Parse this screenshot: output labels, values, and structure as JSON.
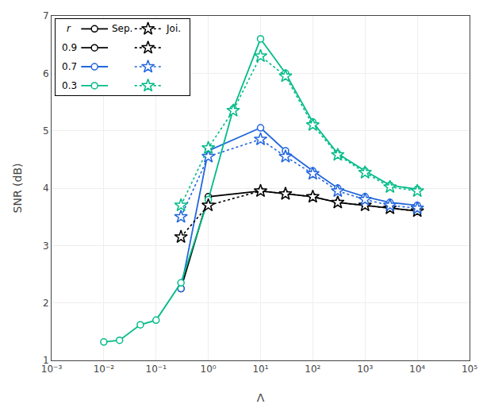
{
  "chart_data": {
    "type": "line",
    "xlabel": "Λ",
    "ylabel": "SNR (dB)",
    "log": "x",
    "grid": true,
    "legend": "upper left",
    "legend_title": "r",
    "xlim": [
      0.001,
      100000
    ],
    "xticks": [
      {
        "value": 0.001,
        "label": "10⁻³"
      },
      {
        "value": 0.01,
        "label": "10⁻²"
      },
      {
        "value": 0.1,
        "label": "10⁻¹"
      },
      {
        "value": 1,
        "label": "10⁰"
      },
      {
        "value": 10,
        "label": "10¹"
      },
      {
        "value": 100,
        "label": "10²"
      },
      {
        "value": 1000,
        "label": "10³"
      },
      {
        "value": 10000,
        "label": "10⁴"
      },
      {
        "value": 100000,
        "label": "10⁵"
      }
    ],
    "ylim": [
      1,
      7
    ],
    "yticks": [
      1,
      2,
      3,
      4,
      5,
      6,
      7
    ],
    "series": [
      {
        "name": "0.9",
        "group": "Sep.",
        "color": "#000000",
        "marker": "circle",
        "line_style": "solid",
        "x": [
          0.3,
          1.0,
          10.0,
          30.0,
          100.0,
          300.0,
          1000.0,
          3000.0,
          10000.0
        ],
        "values": [
          2.25,
          3.85,
          3.95,
          3.9,
          3.85,
          3.75,
          3.7,
          3.65,
          3.6
        ]
      },
      {
        "name": "0.7",
        "group": "Sep.",
        "color": "#2266dd",
        "marker": "circle",
        "line_style": "solid",
        "x": [
          0.3,
          1.0,
          10.0,
          30.0,
          100.0,
          300.0,
          1000.0,
          3000.0,
          10000.0
        ],
        "values": [
          2.25,
          4.65,
          5.05,
          4.65,
          4.3,
          4.0,
          3.85,
          3.75,
          3.7
        ]
      },
      {
        "name": "0.3",
        "group": "Sep.",
        "color": "#00bb88",
        "marker": "circle",
        "line_style": "solid",
        "x": [
          0.01,
          0.02,
          0.05,
          0.1,
          0.3,
          1.0,
          3.0,
          10.0,
          30.0,
          100.0,
          300.0,
          1000.0,
          3000.0,
          10000.0
        ],
        "values": [
          1.32,
          1.35,
          1.62,
          1.7,
          2.35,
          3.8,
          5.38,
          6.6,
          6.0,
          5.15,
          4.6,
          4.3,
          4.05,
          3.98
        ]
      },
      {
        "name": "0.9",
        "group": "Joi.",
        "color": "#000000",
        "marker": "star",
        "line_style": "dotted",
        "x": [
          0.3,
          1.0,
          10.0,
          30.0,
          100.0,
          300.0,
          1000.0,
          3000.0,
          10000.0
        ],
        "values": [
          3.15,
          3.7,
          3.95,
          3.9,
          3.85,
          3.75,
          3.7,
          3.65,
          3.6
        ]
      },
      {
        "name": "0.7",
        "group": "Joi.",
        "color": "#2266dd",
        "marker": "star",
        "line_style": "dotted",
        "x": [
          0.3,
          1.0,
          10.0,
          30.0,
          100.0,
          300.0,
          1000.0,
          3000.0,
          10000.0
        ],
        "values": [
          3.5,
          4.55,
          4.85,
          4.55,
          4.25,
          3.95,
          3.8,
          3.7,
          3.65
        ]
      },
      {
        "name": "0.3",
        "group": "Joi.",
        "color": "#00bb88",
        "marker": "star",
        "line_style": "dotted",
        "x": [
          0.3,
          1.0,
          3.0,
          10.0,
          30.0,
          100.0,
          300.0,
          1000.0,
          3000.0,
          10000.0
        ],
        "values": [
          3.7,
          4.7,
          5.35,
          6.3,
          5.95,
          5.1,
          4.58,
          4.27,
          4.02,
          3.95
        ]
      }
    ]
  }
}
